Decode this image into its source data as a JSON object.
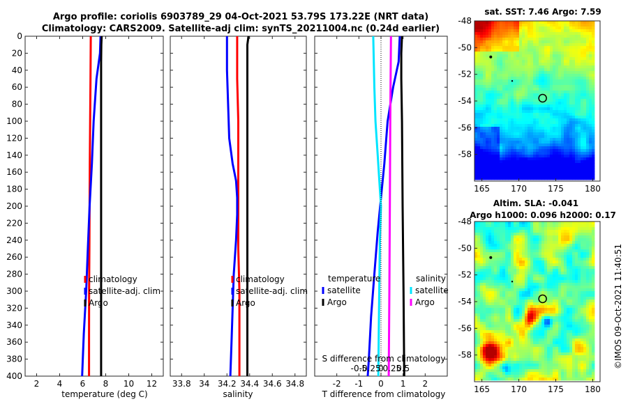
{
  "header": {
    "title_line1": "Argo profile: coriolis 6903789_29 04-Oct-2021 53.79S 173.22E (NRT data)",
    "title_line2": "Climatology: CARS2009. Satellite-adj clim: synTS_20211004.nc (0.24d earlier)"
  },
  "colors": {
    "climatology": "#ff0000",
    "satellite": "#0000ff",
    "argo": "#000000",
    "temp_diff_satellite": "#0000ff",
    "sal_diff_satellite": "#00e5ff",
    "sal_diff_argo": "#ff00ff"
  },
  "chart_data": [
    {
      "type": "line",
      "panel": "temperature",
      "xlabel": "temperature (deg C)",
      "xlim": [
        1,
        13
      ],
      "xticks": [
        2,
        4,
        6,
        8,
        10,
        12
      ],
      "ylim": [
        0,
        400
      ],
      "yticks": [
        0,
        20,
        40,
        60,
        80,
        100,
        120,
        140,
        160,
        180,
        200,
        220,
        240,
        260,
        280,
        300,
        320,
        340,
        360,
        380,
        400
      ],
      "y_reversed": true,
      "legend": [
        "climatology",
        "satellite-adj. clim",
        "Argo"
      ],
      "legend_position": "lower-right",
      "series": [
        {
          "name": "climatology",
          "color": "#ff0000",
          "depth": [
            0,
            50,
            100,
            150,
            200,
            250,
            300,
            350,
            400
          ],
          "values": [
            6.7,
            6.68,
            6.65,
            6.62,
            6.6,
            6.58,
            6.56,
            6.55,
            6.55
          ]
        },
        {
          "name": "satellite-adj. clim",
          "color": "#0000ff",
          "depth": [
            0,
            20,
            50,
            100,
            150,
            200,
            250,
            300,
            350,
            400
          ],
          "values": [
            7.55,
            7.5,
            7.2,
            6.95,
            6.8,
            6.6,
            6.45,
            6.3,
            6.1,
            5.95
          ]
        },
        {
          "name": "Argo",
          "color": "#000000",
          "depth": [
            0,
            10,
            30,
            60,
            100,
            200,
            300,
            400
          ],
          "values": [
            7.65,
            7.62,
            7.6,
            7.6,
            7.6,
            7.6,
            7.6,
            7.6
          ]
        }
      ]
    },
    {
      "type": "line",
      "panel": "salinity",
      "xlabel": "salinity",
      "xlim": [
        33.7,
        34.9
      ],
      "xticks": [
        33.8,
        34.0,
        34.2,
        34.4,
        34.6,
        34.8
      ],
      "xticklabels": [
        "33.8",
        "34",
        "34.2",
        "34.4",
        "34.6",
        "34.8"
      ],
      "ylim": [
        0,
        400
      ],
      "y_reversed": true,
      "legend": [
        "climatology",
        "satellite-adj. clim",
        "Argo"
      ],
      "legend_position": "lower-right",
      "series": [
        {
          "name": "climatology",
          "color": "#ff0000",
          "depth": [
            0,
            50,
            100,
            150,
            200,
            250,
            300,
            350,
            400
          ],
          "values": [
            34.29,
            34.29,
            34.3,
            34.3,
            34.3,
            34.3,
            34.31,
            34.31,
            34.31
          ]
        },
        {
          "name": "satellite-adj. clim",
          "color": "#0000ff",
          "depth": [
            0,
            40,
            80,
            120,
            150,
            170,
            190,
            210,
            240,
            280,
            320,
            360,
            400
          ],
          "values": [
            34.2,
            34.2,
            34.21,
            34.22,
            34.25,
            34.28,
            34.29,
            34.29,
            34.28,
            34.26,
            34.25,
            34.24,
            34.23
          ]
        },
        {
          "name": "Argo",
          "color": "#000000",
          "depth": [
            0,
            10,
            50,
            100,
            200,
            300,
            400
          ],
          "values": [
            34.39,
            34.38,
            34.38,
            34.38,
            34.38,
            34.38,
            34.38
          ]
        }
      ]
    },
    {
      "type": "line",
      "panel": "difference",
      "xlabel": "T difference from climatology",
      "xlim": [
        -3,
        3
      ],
      "xticks": [
        -2,
        -1,
        0,
        1,
        2
      ],
      "top_axis_label": "S difference from climatology",
      "top_ticklabels": [
        "-0.5",
        "-0.25",
        "0",
        "0.25",
        "0.5"
      ],
      "top_tick_positions_T": [
        -1,
        -0.5,
        0,
        0.5,
        1
      ],
      "ylim": [
        0,
        400
      ],
      "y_reversed": true,
      "legend_temperature_heading": "temperature",
      "legend_salinity_heading": "salinity",
      "legend_temperature": [
        "satellite",
        "Argo"
      ],
      "legend_salinity": [
        "satellite",
        "Argo"
      ],
      "series": [
        {
          "name": "T satellite",
          "color": "#0000ff",
          "depth": [
            0,
            30,
            60,
            100,
            150,
            190,
            230,
            280,
            330,
            380,
            400
          ],
          "values": [
            0.85,
            0.8,
            0.55,
            0.3,
            0.15,
            0.0,
            -0.15,
            -0.3,
            -0.45,
            -0.55,
            -0.6
          ]
        },
        {
          "name": "T Argo",
          "color": "#000000",
          "depth": [
            0,
            20,
            50,
            100,
            200,
            300,
            400
          ],
          "values": [
            0.95,
            0.92,
            0.92,
            0.95,
            0.98,
            1.02,
            1.05
          ]
        },
        {
          "name": "S satellite (scaled)",
          "color": "#00e5ff",
          "depth": [
            0,
            60,
            100,
            140,
            180,
            200,
            240,
            300,
            350,
            400
          ],
          "values": [
            -0.35,
            -0.3,
            -0.25,
            -0.15,
            -0.05,
            0.0,
            -0.05,
            -0.08,
            -0.1,
            -0.12
          ]
        },
        {
          "name": "S Argo (scaled)",
          "color": "#ff00ff",
          "depth": [
            0,
            100,
            200,
            300,
            400
          ],
          "values": [
            0.45,
            0.42,
            0.4,
            0.38,
            0.35
          ]
        }
      ]
    },
    {
      "type": "heatmap",
      "panel": "sst_map",
      "title": "sat. SST: 7.46 Argo: 7.59",
      "xlim": [
        164,
        181
      ],
      "ylim": [
        -60,
        -48
      ],
      "xticks": [
        165,
        170,
        175,
        180
      ],
      "yticks": [
        -48,
        -50,
        -52,
        -54,
        -56,
        -58
      ],
      "argo_position": {
        "lon": 173.22,
        "lat": -53.79
      }
    },
    {
      "type": "heatmap",
      "panel": "sla_map",
      "title_line1": "Altim. SLA: -0.041",
      "title_line2": "Argo h1000: 0.096 h2000: 0.17",
      "xlim": [
        164,
        181
      ],
      "ylim": [
        -60,
        -48
      ],
      "xticks": [
        165,
        170,
        175,
        180
      ],
      "yticks": [
        -48,
        -50,
        -52,
        -54,
        -56,
        -58
      ],
      "argo_position": {
        "lon": 173.22,
        "lat": -53.79
      }
    }
  ],
  "credit": "©IMOS 09-Oct-2021 11:40:51"
}
